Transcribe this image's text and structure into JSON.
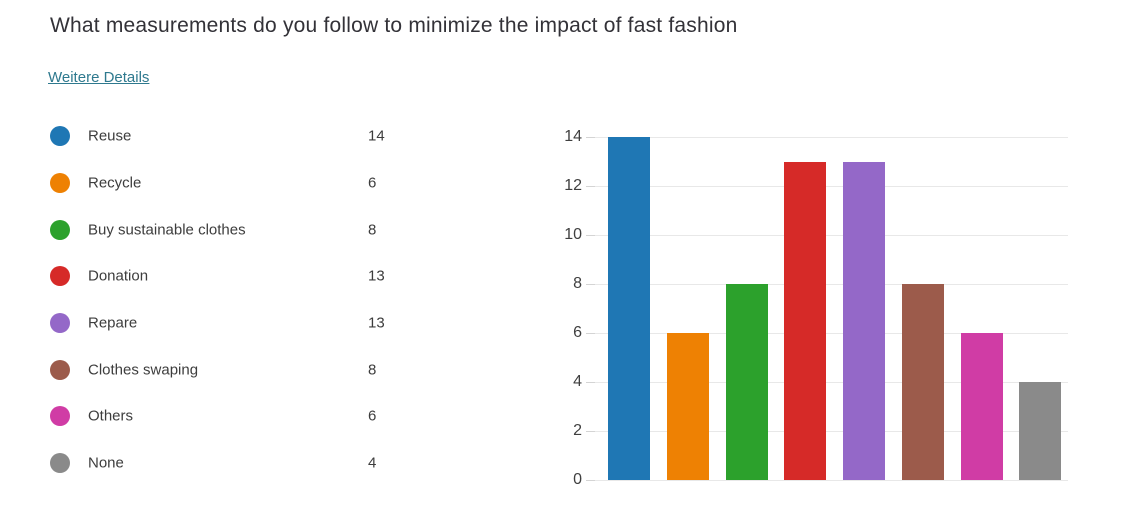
{
  "page": {
    "title": "What measurements do you follow to minimize the impact of fast fashion",
    "details_link_label": "Weitere Details"
  },
  "legend": {
    "items": [
      {
        "label": "Reuse",
        "value": 14,
        "color": "#1F77B4"
      },
      {
        "label": "Recycle",
        "value": 6,
        "color": "#EE8103"
      },
      {
        "label": "Buy sustainable clothes",
        "value": 8,
        "color": "#2CA12C"
      },
      {
        "label": "Donation",
        "value": 13,
        "color": "#D62A28"
      },
      {
        "label": "Repare",
        "value": 13,
        "color": "#9468C8"
      },
      {
        "label": "Clothes swaping",
        "value": 8,
        "color": "#9C5B4B"
      },
      {
        "label": "Others",
        "value": 6,
        "color": "#D03CA5"
      },
      {
        "label": "None",
        "value": 4,
        "color": "#8A8A8A"
      }
    ]
  },
  "chart_data": {
    "type": "bar",
    "categories": [
      "Reuse",
      "Recycle",
      "Buy sustainable clothes",
      "Donation",
      "Repare",
      "Clothes swaping",
      "Others",
      "None"
    ],
    "values": [
      14,
      6,
      8,
      13,
      13,
      8,
      6,
      4
    ],
    "colors": [
      "#1F77B4",
      "#EE8103",
      "#2CA12C",
      "#D62A28",
      "#9468C8",
      "#9C5B4B",
      "#D03CA5",
      "#8A8A8A"
    ],
    "title": "",
    "xlabel": "",
    "ylabel": "",
    "ylim": [
      0,
      14
    ],
    "yticks": [
      0,
      2,
      4,
      6,
      8,
      10,
      12,
      14
    ],
    "grid": true,
    "x_tick_labels_visible": false,
    "legend_position": "left"
  },
  "theme": {
    "background": "#FFFFFF",
    "title_color": "#333238",
    "text_color": "#3D3D3D",
    "link_color": "#2E798E",
    "grid_color": "#E8E8E8",
    "tick_color": "#D4D4D4"
  }
}
